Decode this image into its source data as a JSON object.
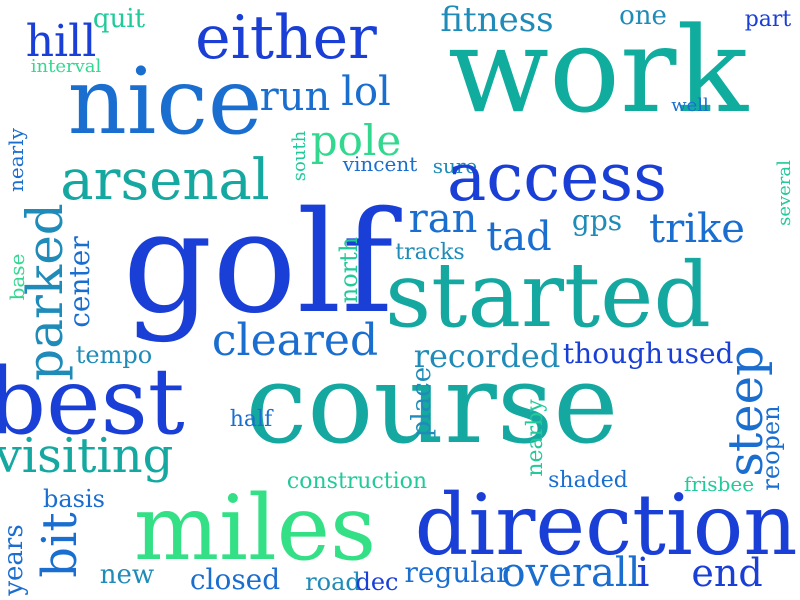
{
  "words": [
    {
      "text": "work",
      "color": "#10ad9e",
      "rotated": false
    },
    {
      "text": "nice",
      "color": "#1a6ed0",
      "rotated": false
    },
    {
      "text": "either",
      "color": "#1a3fd6",
      "rotated": false
    },
    {
      "text": "hill",
      "color": "#1a3fd6",
      "rotated": false
    },
    {
      "text": "quit",
      "color": "#22c99a",
      "rotated": false
    },
    {
      "text": "interval",
      "color": "#33d88f",
      "rotated": false
    },
    {
      "text": "fitness",
      "color": "#1f8bb8",
      "rotated": false
    },
    {
      "text": "one",
      "color": "#1f8bb8",
      "rotated": false
    },
    {
      "text": "part",
      "color": "#1a3fd6",
      "rotated": false
    },
    {
      "text": "well",
      "color": "#1a6ed0",
      "rotated": false
    },
    {
      "text": "years",
      "color": "#1a6ed0",
      "rotated": true
    },
    {
      "text": "run",
      "color": "#1a6ed0",
      "rotated": false
    },
    {
      "text": "lol",
      "color": "#1a6ed0",
      "rotated": false
    },
    {
      "text": "pole",
      "color": "#33d88f",
      "rotated": false
    },
    {
      "text": "south",
      "color": "#22c99a",
      "rotated": true
    },
    {
      "text": "vincent",
      "color": "#1a6ed0",
      "rotated": false
    },
    {
      "text": "sure",
      "color": "#1f8bb8",
      "rotated": false
    },
    {
      "text": "nearly",
      "color": "#1a6ed0",
      "rotated": true
    },
    {
      "text": "arsenal",
      "color": "#14a8a0",
      "rotated": false
    },
    {
      "text": "access",
      "color": "#1a3fd6",
      "rotated": false
    },
    {
      "text": "several",
      "color": "#22c99a",
      "rotated": true
    },
    {
      "text": "golf",
      "color": "#1a3fd6",
      "rotated": false
    },
    {
      "text": "ran",
      "color": "#1a6ed0",
      "rotated": false
    },
    {
      "text": "tad",
      "color": "#1a6ed0",
      "rotated": false
    },
    {
      "text": "gps",
      "color": "#1f8bb8",
      "rotated": false
    },
    {
      "text": "trike",
      "color": "#1a6ed0",
      "rotated": false
    },
    {
      "text": "base",
      "color": "#33d88f",
      "rotated": true
    },
    {
      "text": "parked",
      "color": "#1f8bb8",
      "rotated": true
    },
    {
      "text": "center",
      "color": "#1a6ed0",
      "rotated": true
    },
    {
      "text": "north",
      "color": "#22c99a",
      "rotated": true
    },
    {
      "text": "tracks",
      "color": "#1f8bb8",
      "rotated": false
    },
    {
      "text": "started",
      "color": "#14a8a0",
      "rotated": false
    },
    {
      "text": "cleared",
      "color": "#1a6ed0",
      "rotated": false
    },
    {
      "text": "tempo",
      "color": "#1f8bb8",
      "rotated": false
    },
    {
      "text": "recorded",
      "color": "#1f8bb8",
      "rotated": false
    },
    {
      "text": "though",
      "color": "#1a3fd6",
      "rotated": false
    },
    {
      "text": "used",
      "color": "#1a3fd6",
      "rotated": false
    },
    {
      "text": "best",
      "color": "#1a3fd6",
      "rotated": false
    },
    {
      "text": "course",
      "color": "#14a8a0",
      "rotated": false
    },
    {
      "text": "place",
      "color": "#1f8bb8",
      "rotated": true
    },
    {
      "text": "steep",
      "color": "#1a6ed0",
      "rotated": true
    },
    {
      "text": "reopen",
      "color": "#1a6ed0",
      "rotated": true
    },
    {
      "text": "half",
      "color": "#1a6ed0",
      "rotated": false
    },
    {
      "text": "nearby",
      "color": "#22c99a",
      "rotated": true
    },
    {
      "text": "visiting",
      "color": "#14a8a0",
      "rotated": false
    },
    {
      "text": "construction",
      "color": "#22c99a",
      "rotated": false
    },
    {
      "text": "shaded",
      "color": "#1a6ed0",
      "rotated": false
    },
    {
      "text": "frisbee",
      "color": "#22c99a",
      "rotated": false
    },
    {
      "text": "basis",
      "color": "#1a6ed0",
      "rotated": false
    },
    {
      "text": "miles",
      "color": "#33e085",
      "rotated": false
    },
    {
      "text": "direction",
      "color": "#1a3fd6",
      "rotated": false
    },
    {
      "text": "bit",
      "color": "#1a6ed0",
      "rotated": true
    },
    {
      "text": "new",
      "color": "#1f8bb8",
      "rotated": false
    },
    {
      "text": "closed",
      "color": "#1a6ed0",
      "rotated": false
    },
    {
      "text": "road",
      "color": "#1f8bb8",
      "rotated": false
    },
    {
      "text": "dec",
      "color": "#1a3fd6",
      "rotated": false
    },
    {
      "text": "regular",
      "color": "#1a6ed0",
      "rotated": false
    },
    {
      "text": "overall",
      "color": "#1a6ed0",
      "rotated": false
    },
    {
      "text": "i",
      "color": "#1a3fd6",
      "rotated": false
    },
    {
      "text": "end",
      "color": "#1a3fd6",
      "rotated": false
    }
  ]
}
